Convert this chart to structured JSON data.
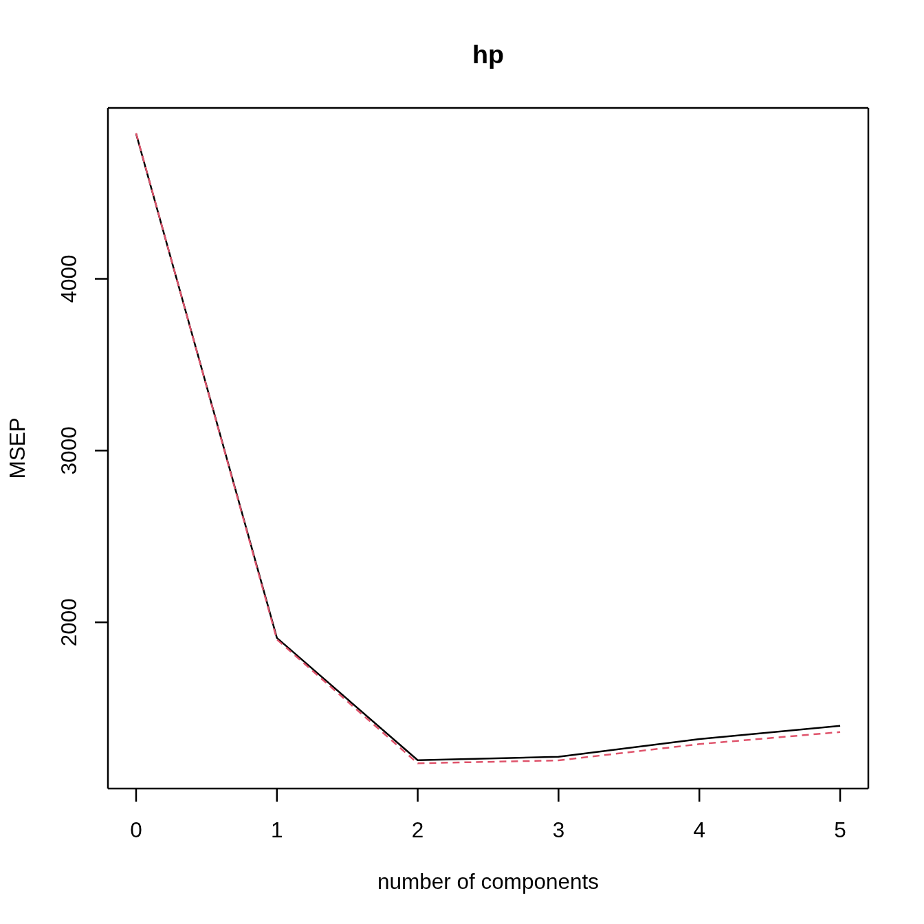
{
  "chart_data": {
    "type": "line",
    "title": "hp",
    "xlabel": "number of components",
    "ylabel": "MSEP",
    "x": [
      0,
      1,
      2,
      3,
      4,
      5
    ],
    "series": [
      {
        "color": "#000000",
        "line_style": "solid",
        "values": [
          4845,
          1909,
          1197,
          1217,
          1320,
          1397
        ]
      },
      {
        "color": "#df536b",
        "line_style": "dashed",
        "values": [
          4848,
          1900,
          1179,
          1196,
          1291,
          1361
        ]
      }
    ],
    "xlim": [
      -0.2,
      5.2
    ],
    "ylim": [
      1032,
      4995
    ],
    "xticks": [
      0,
      1,
      2,
      3,
      4,
      5
    ],
    "yticks": [
      2000,
      3000,
      4000
    ]
  }
}
